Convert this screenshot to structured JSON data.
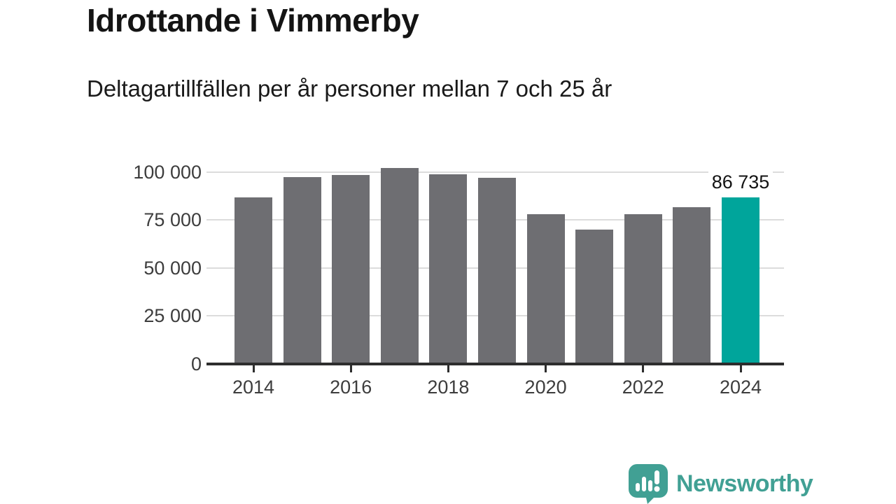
{
  "chart_data": {
    "type": "bar",
    "title": "Idrottande i Vimmerby",
    "subtitle": "Deltagartillfällen per år personer mellan 7 och 25 år",
    "categories": [
      "2014",
      "2015",
      "2016",
      "2017",
      "2018",
      "2019",
      "2020",
      "2021",
      "2022",
      "2023",
      "2024"
    ],
    "values": [
      86900,
      97400,
      98400,
      102100,
      98700,
      96900,
      78100,
      69800,
      78000,
      81600,
      86735
    ],
    "highlight_index": 10,
    "bar_label": {
      "index": 10,
      "text": "86 735"
    },
    "y_ticks": [
      {
        "value": 0,
        "label": "0"
      },
      {
        "value": 25000,
        "label": "25 000"
      },
      {
        "value": 50000,
        "label": "50 000"
      },
      {
        "value": 75000,
        "label": "75 000"
      },
      {
        "value": 100000,
        "label": "100 000"
      }
    ],
    "x_ticks": [
      {
        "index": 0,
        "label": "2014"
      },
      {
        "index": 2,
        "label": "2016"
      },
      {
        "index": 4,
        "label": "2018"
      },
      {
        "index": 6,
        "label": "2020"
      },
      {
        "index": 8,
        "label": "2022"
      },
      {
        "index": 10,
        "label": "2024"
      }
    ],
    "ylim": [
      0,
      107000
    ],
    "xlabel": "",
    "ylabel": "",
    "grid": "horizontal",
    "legend": "none",
    "colors": {
      "bar": "#6e6e72",
      "highlight": "#00a59b",
      "gridline": "#dcdcdc",
      "axis": "#2d2d2d",
      "tick_text": "#3d3d3d",
      "value_label": "#141414"
    }
  },
  "branding": {
    "name": "Newsworthy",
    "color": "#41a094",
    "icon": "speech-bubble-bar-chart-exclamation"
  }
}
